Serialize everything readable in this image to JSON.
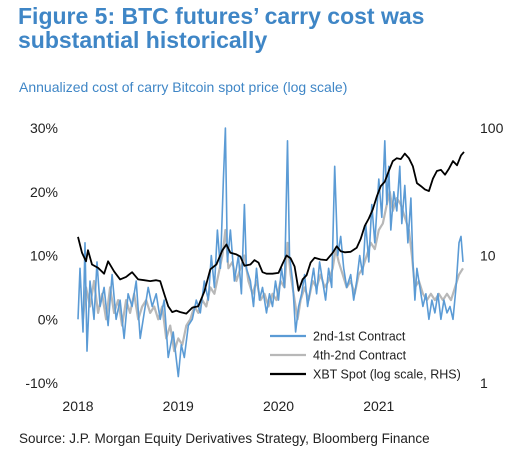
{
  "header": {
    "title": "Figure 5: BTC futures’ carry cost was substantial historically",
    "subtitle": "Annualized cost of carry Bitcoin spot price (log scale)",
    "source": "Source: J.P. Morgan Equity Derivatives Strategy, Bloomberg Finance"
  },
  "colors": {
    "title": "#3f86c6",
    "contract_2_1": "#5b9bd5",
    "contract_4_2": "#b8b8b8",
    "spot": "#000000"
  },
  "chart_data": {
    "type": "line",
    "title": "",
    "xlabel": "",
    "ylabel_left": "",
    "ylabel_right": "",
    "x_range": [
      2018.0,
      2021.85
    ],
    "ylim_left": [
      -10,
      30
    ],
    "ylim_right": [
      1,
      100
    ],
    "right_scale": "log",
    "x_ticks": [
      "2018",
      "2019",
      "2020",
      "2021"
    ],
    "y_ticks_left": [
      "30%",
      "20%",
      "10%",
      "0%",
      "-10%"
    ],
    "y_ticks_right": [
      "100",
      "10",
      "1"
    ],
    "legend_position": "bottom-right",
    "series": [
      {
        "name": "2nd-1st Contract",
        "axis": "left",
        "points": [
          [
            2018.0,
            0
          ],
          [
            2018.02,
            8
          ],
          [
            2018.05,
            -2
          ],
          [
            2018.07,
            12
          ],
          [
            2018.09,
            -5
          ],
          [
            2018.12,
            6
          ],
          [
            2018.16,
            0
          ],
          [
            2018.19,
            9
          ],
          [
            2018.22,
            2
          ],
          [
            2018.26,
            5
          ],
          [
            2018.3,
            -1
          ],
          [
            2018.34,
            7
          ],
          [
            2018.38,
            0
          ],
          [
            2018.42,
            3
          ],
          [
            2018.46,
            -3
          ],
          [
            2018.5,
            4
          ],
          [
            2018.54,
            2
          ],
          [
            2018.58,
            6
          ],
          [
            2018.62,
            -3
          ],
          [
            2018.66,
            1
          ],
          [
            2018.7,
            5
          ],
          [
            2018.74,
            2
          ],
          [
            2018.78,
            4
          ],
          [
            2018.82,
            0
          ],
          [
            2018.86,
            3
          ],
          [
            2018.9,
            -6
          ],
          [
            2018.95,
            -2
          ],
          [
            2019.0,
            -9
          ],
          [
            2019.03,
            -4
          ],
          [
            2019.06,
            -6
          ],
          [
            2019.1,
            -1
          ],
          [
            2019.14,
            0
          ],
          [
            2019.18,
            3
          ],
          [
            2019.22,
            1
          ],
          [
            2019.26,
            6
          ],
          [
            2019.3,
            3
          ],
          [
            2019.33,
            10
          ],
          [
            2019.36,
            5
          ],
          [
            2019.39,
            14
          ],
          [
            2019.42,
            8
          ],
          [
            2019.45,
            22
          ],
          [
            2019.47,
            30
          ],
          [
            2019.49,
            9
          ],
          [
            2019.52,
            14
          ],
          [
            2019.56,
            6
          ],
          [
            2019.6,
            10
          ],
          [
            2019.63,
            4
          ],
          [
            2019.66,
            18
          ],
          [
            2019.68,
            8
          ],
          [
            2019.72,
            6
          ],
          [
            2019.75,
            2
          ],
          [
            2019.78,
            8
          ],
          [
            2019.81,
            3
          ],
          [
            2019.84,
            5
          ],
          [
            2019.88,
            1
          ],
          [
            2019.91,
            4
          ],
          [
            2019.94,
            2
          ],
          [
            2019.97,
            6
          ],
          [
            2020.0,
            3
          ],
          [
            2020.03,
            8
          ],
          [
            2020.06,
            5
          ],
          [
            2020.09,
            28
          ],
          [
            2020.11,
            10
          ],
          [
            2020.14,
            6
          ],
          [
            2020.17,
            -2
          ],
          [
            2020.2,
            2
          ],
          [
            2020.23,
            4
          ],
          [
            2020.26,
            7
          ],
          [
            2020.29,
            2
          ],
          [
            2020.32,
            5
          ],
          [
            2020.35,
            8
          ],
          [
            2020.38,
            4
          ],
          [
            2020.41,
            9
          ],
          [
            2020.44,
            6
          ],
          [
            2020.47,
            3
          ],
          [
            2020.5,
            8
          ],
          [
            2020.53,
            5
          ],
          [
            2020.56,
            24
          ],
          [
            2020.59,
            10
          ],
          [
            2020.62,
            13
          ],
          [
            2020.65,
            8
          ],
          [
            2020.68,
            5
          ],
          [
            2020.72,
            7
          ],
          [
            2020.75,
            3
          ],
          [
            2020.78,
            6
          ],
          [
            2020.81,
            10
          ],
          [
            2020.84,
            7
          ],
          [
            2020.87,
            15
          ],
          [
            2020.9,
            9
          ],
          [
            2020.93,
            18
          ],
          [
            2020.96,
            12
          ],
          [
            2021.0,
            22
          ],
          [
            2021.03,
            16
          ],
          [
            2021.06,
            28
          ],
          [
            2021.08,
            18
          ],
          [
            2021.1,
            24
          ],
          [
            2021.12,
            14
          ],
          [
            2021.15,
            20
          ],
          [
            2021.18,
            17
          ],
          [
            2021.21,
            24
          ],
          [
            2021.23,
            15
          ],
          [
            2021.26,
            21
          ],
          [
            2021.29,
            12
          ],
          [
            2021.32,
            19
          ],
          [
            2021.34,
            9
          ],
          [
            2021.36,
            3
          ],
          [
            2021.38,
            8
          ],
          [
            2021.41,
            5
          ],
          [
            2021.44,
            2
          ],
          [
            2021.47,
            4
          ],
          [
            2021.5,
            0
          ],
          [
            2021.53,
            3
          ],
          [
            2021.56,
            1
          ],
          [
            2021.59,
            4
          ],
          [
            2021.62,
            0
          ],
          [
            2021.65,
            3
          ],
          [
            2021.68,
            1
          ],
          [
            2021.71,
            2
          ],
          [
            2021.74,
            0
          ],
          [
            2021.77,
            5
          ],
          [
            2021.8,
            12
          ],
          [
            2021.82,
            13
          ],
          [
            2021.84,
            9
          ]
        ]
      },
      {
        "name": "4th-2nd Contract",
        "axis": "left",
        "points": [
          [
            2018.05,
            0
          ],
          [
            2018.08,
            5
          ],
          [
            2018.12,
            2
          ],
          [
            2018.16,
            6
          ],
          [
            2018.2,
            1
          ],
          [
            2018.24,
            4
          ],
          [
            2018.28,
            0
          ],
          [
            2018.32,
            5
          ],
          [
            2018.36,
            1
          ],
          [
            2018.4,
            3
          ],
          [
            2018.44,
            -1
          ],
          [
            2018.48,
            3
          ],
          [
            2018.52,
            1
          ],
          [
            2018.56,
            4
          ],
          [
            2018.6,
            0
          ],
          [
            2018.64,
            2
          ],
          [
            2018.68,
            3
          ],
          [
            2018.72,
            1
          ],
          [
            2018.76,
            2
          ],
          [
            2018.8,
            0
          ],
          [
            2018.84,
            2
          ],
          [
            2018.88,
            -3
          ],
          [
            2018.92,
            -1
          ],
          [
            2018.96,
            -5
          ],
          [
            2019.0,
            -3
          ],
          [
            2019.04,
            -4
          ],
          [
            2019.08,
            -1
          ],
          [
            2019.12,
            0
          ],
          [
            2019.16,
            2
          ],
          [
            2019.2,
            1
          ],
          [
            2019.24,
            3
          ],
          [
            2019.28,
            2
          ],
          [
            2019.32,
            5
          ],
          [
            2019.36,
            4
          ],
          [
            2019.4,
            7
          ],
          [
            2019.44,
            10
          ],
          [
            2019.47,
            14
          ],
          [
            2019.5,
            8
          ],
          [
            2019.54,
            9
          ],
          [
            2019.58,
            6
          ],
          [
            2019.62,
            8
          ],
          [
            2019.66,
            10
          ],
          [
            2019.7,
            6
          ],
          [
            2019.74,
            4
          ],
          [
            2019.78,
            6
          ],
          [
            2019.82,
            3
          ],
          [
            2019.86,
            4
          ],
          [
            2019.9,
            2
          ],
          [
            2019.94,
            4
          ],
          [
            2019.98,
            3
          ],
          [
            2020.02,
            6
          ],
          [
            2020.06,
            5
          ],
          [
            2020.09,
            12
          ],
          [
            2020.12,
            7
          ],
          [
            2020.16,
            3
          ],
          [
            2020.19,
            0
          ],
          [
            2020.22,
            3
          ],
          [
            2020.26,
            5
          ],
          [
            2020.3,
            3
          ],
          [
            2020.34,
            6
          ],
          [
            2020.38,
            5
          ],
          [
            2020.42,
            7
          ],
          [
            2020.46,
            5
          ],
          [
            2020.5,
            6
          ],
          [
            2020.54,
            8
          ],
          [
            2020.57,
            11
          ],
          [
            2020.6,
            9
          ],
          [
            2020.64,
            7
          ],
          [
            2020.68,
            5
          ],
          [
            2020.72,
            6
          ],
          [
            2020.76,
            4
          ],
          [
            2020.8,
            7
          ],
          [
            2020.84,
            8
          ],
          [
            2020.88,
            10
          ],
          [
            2020.92,
            12
          ],
          [
            2020.96,
            11
          ],
          [
            2021.0,
            14
          ],
          [
            2021.04,
            15
          ],
          [
            2021.08,
            18
          ],
          [
            2021.11,
            20
          ],
          [
            2021.14,
            17
          ],
          [
            2021.18,
            19
          ],
          [
            2021.22,
            18
          ],
          [
            2021.26,
            16
          ],
          [
            2021.3,
            14
          ],
          [
            2021.33,
            10
          ],
          [
            2021.36,
            5
          ],
          [
            2021.4,
            6
          ],
          [
            2021.44,
            4
          ],
          [
            2021.48,
            3
          ],
          [
            2021.52,
            4
          ],
          [
            2021.56,
            3
          ],
          [
            2021.6,
            4
          ],
          [
            2021.64,
            3
          ],
          [
            2021.68,
            4
          ],
          [
            2021.72,
            3
          ],
          [
            2021.76,
            5
          ],
          [
            2021.8,
            7
          ],
          [
            2021.84,
            8
          ]
        ]
      },
      {
        "name": "XBT Spot (log scale, RHS)",
        "axis": "right",
        "points": [
          [
            2018.0,
            14
          ],
          [
            2018.04,
            10.5
          ],
          [
            2018.08,
            9
          ],
          [
            2018.1,
            11
          ],
          [
            2018.14,
            8.5
          ],
          [
            2018.2,
            8
          ],
          [
            2018.26,
            7.2
          ],
          [
            2018.3,
            9
          ],
          [
            2018.36,
            7.5
          ],
          [
            2018.42,
            6.5
          ],
          [
            2018.48,
            6.8
          ],
          [
            2018.54,
            7.4
          ],
          [
            2018.6,
            6.5
          ],
          [
            2018.66,
            6.4
          ],
          [
            2018.72,
            6.3
          ],
          [
            2018.78,
            6.4
          ],
          [
            2018.82,
            6.3
          ],
          [
            2018.86,
            5
          ],
          [
            2018.9,
            4
          ],
          [
            2018.94,
            3.6
          ],
          [
            2018.98,
            3.7
          ],
          [
            2019.02,
            3.6
          ],
          [
            2019.08,
            3.5
          ],
          [
            2019.14,
            3.9
          ],
          [
            2019.2,
            4
          ],
          [
            2019.26,
            5.2
          ],
          [
            2019.32,
            7.8
          ],
          [
            2019.38,
            8.5
          ],
          [
            2019.44,
            11
          ],
          [
            2019.48,
            12.2
          ],
          [
            2019.52,
            10.5
          ],
          [
            2019.58,
            10.2
          ],
          [
            2019.62,
            9.8
          ],
          [
            2019.66,
            8.3
          ],
          [
            2019.72,
            8.5
          ],
          [
            2019.76,
            9.2
          ],
          [
            2019.8,
            8.8
          ],
          [
            2019.84,
            7.4
          ],
          [
            2019.88,
            7.2
          ],
          [
            2019.94,
            7.2
          ],
          [
            2020.0,
            7.3
          ],
          [
            2020.04,
            8.6
          ],
          [
            2020.08,
            10
          ],
          [
            2020.12,
            9.5
          ],
          [
            2020.16,
            8.2
          ],
          [
            2020.2,
            5.3
          ],
          [
            2020.24,
            6.5
          ],
          [
            2020.28,
            7
          ],
          [
            2020.32,
            8.8
          ],
          [
            2020.36,
            9.6
          ],
          [
            2020.42,
            9.3
          ],
          [
            2020.48,
            9.2
          ],
          [
            2020.54,
            10.5
          ],
          [
            2020.58,
            11.8
          ],
          [
            2020.62,
            10.8
          ],
          [
            2020.66,
            10.6
          ],
          [
            2020.72,
            10.7
          ],
          [
            2020.78,
            11.5
          ],
          [
            2020.82,
            13.5
          ],
          [
            2020.86,
            17
          ],
          [
            2020.9,
            19.5
          ],
          [
            2020.94,
            23
          ],
          [
            2020.98,
            29
          ],
          [
            2021.02,
            35
          ],
          [
            2021.06,
            38
          ],
          [
            2021.1,
            46
          ],
          [
            2021.14,
            55
          ],
          [
            2021.18,
            58
          ],
          [
            2021.22,
            57
          ],
          [
            2021.26,
            63
          ],
          [
            2021.3,
            58
          ],
          [
            2021.34,
            50
          ],
          [
            2021.38,
            37
          ],
          [
            2021.42,
            35
          ],
          [
            2021.46,
            33
          ],
          [
            2021.5,
            32
          ],
          [
            2021.54,
            40
          ],
          [
            2021.58,
            46
          ],
          [
            2021.62,
            47
          ],
          [
            2021.66,
            43
          ],
          [
            2021.7,
            48
          ],
          [
            2021.74,
            55
          ],
          [
            2021.78,
            51
          ],
          [
            2021.82,
            61
          ],
          [
            2021.85,
            65
          ]
        ]
      }
    ]
  }
}
